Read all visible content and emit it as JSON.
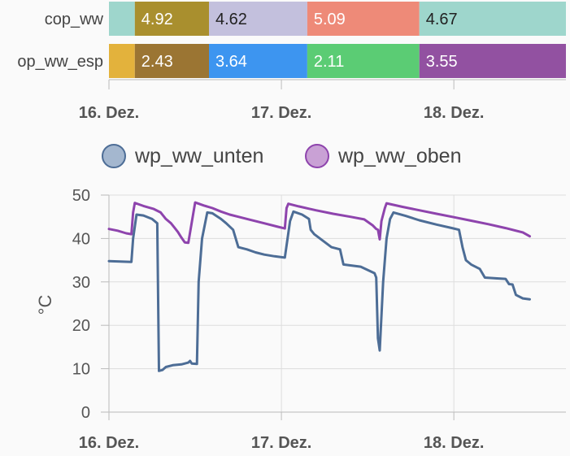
{
  "chart_data": [
    {
      "type": "bar",
      "orientation": "horizontal-timeline",
      "rows": [
        {
          "label": "cop_ww",
          "segments": [
            {
              "value": "",
              "color": "#9ed6cc",
              "text_color": "#ffffff"
            },
            {
              "value": "4.92",
              "color": "#a98f2e",
              "text_color": "#ffffff"
            },
            {
              "value": "4.62",
              "color": "#c3c0dd",
              "text_color": "#222222"
            },
            {
              "value": "5.09",
              "color": "#ee8a78",
              "text_color": "#ffffff"
            },
            {
              "value": "4.67",
              "color": "#9ed6cc",
              "text_color": "#222222"
            }
          ]
        },
        {
          "label": "cop_ww_esp",
          "label_display": "op_ww_esp",
          "segments": [
            {
              "value": "",
              "color": "#e3b23c",
              "text_color": "#ffffff"
            },
            {
              "value": "2.43",
              "color": "#9b7533",
              "text_color": "#ffffff"
            },
            {
              "value": "3.64",
              "color": "#3d95f0",
              "text_color": "#ffffff"
            },
            {
              "value": "2.11",
              "color": "#5bcc74",
              "text_color": "#ffffff"
            },
            {
              "value": "3.55",
              "color": "#9251a1",
              "text_color": "#ffffff"
            }
          ]
        }
      ],
      "segment_bounds_days": [
        0.0,
        0.15,
        0.58,
        1.15,
        1.8,
        2.65
      ],
      "x_ticks": [
        "16. Dez.",
        "17. Dez.",
        "18. Dez."
      ],
      "x_range_days": [
        0,
        2.65
      ]
    },
    {
      "type": "line",
      "ylabel": "°C",
      "ylim": [
        0,
        50
      ],
      "y_ticks": [
        0,
        10,
        20,
        30,
        40,
        50
      ],
      "x_ticks": [
        "16. Dez.",
        "17. Dez.",
        "18. Dez."
      ],
      "x_range_days": [
        0,
        2.65
      ],
      "grid": true,
      "legend_position": "top",
      "series": [
        {
          "name": "wp_ww_unten",
          "color": "#4d6d96",
          "fill": "#a4b7cf",
          "points": [
            [
              0.0,
              34.8
            ],
            [
              0.13,
              34.6
            ],
            [
              0.14,
              40.0
            ],
            [
              0.16,
              45.5
            ],
            [
              0.2,
              45.3
            ],
            [
              0.25,
              44.5
            ],
            [
              0.28,
              43.5
            ],
            [
              0.29,
              9.5
            ],
            [
              0.31,
              9.7
            ],
            [
              0.33,
              10.4
            ],
            [
              0.37,
              10.8
            ],
            [
              0.42,
              11.0
            ],
            [
              0.46,
              11.4
            ],
            [
              0.47,
              11.8
            ],
            [
              0.48,
              11.2
            ],
            [
              0.51,
              11.1
            ],
            [
              0.52,
              30.0
            ],
            [
              0.54,
              40.0
            ],
            [
              0.57,
              46.0
            ],
            [
              0.6,
              45.8
            ],
            [
              0.65,
              44.5
            ],
            [
              0.68,
              43.5
            ],
            [
              0.72,
              42.0
            ],
            [
              0.75,
              38.0
            ],
            [
              0.8,
              37.5
            ],
            [
              0.85,
              36.8
            ],
            [
              0.9,
              36.3
            ],
            [
              0.96,
              35.9
            ],
            [
              1.0,
              35.7
            ],
            [
              1.02,
              35.6
            ],
            [
              1.05,
              44.0
            ],
            [
              1.07,
              46.2
            ],
            [
              1.12,
              45.5
            ],
            [
              1.16,
              44.5
            ],
            [
              1.17,
              42.0
            ],
            [
              1.19,
              41.0
            ],
            [
              1.24,
              39.5
            ],
            [
              1.29,
              38.0
            ],
            [
              1.34,
              37.5
            ],
            [
              1.36,
              34.0
            ],
            [
              1.4,
              33.8
            ],
            [
              1.46,
              33.5
            ],
            [
              1.54,
              32.0
            ],
            [
              1.55,
              31.0
            ],
            [
              1.56,
              17.0
            ],
            [
              1.57,
              14.2
            ],
            [
              1.59,
              30.0
            ],
            [
              1.61,
              40.0
            ],
            [
              1.63,
              44.5
            ],
            [
              1.65,
              46.0
            ],
            [
              1.72,
              45.2
            ],
            [
              1.8,
              44.2
            ],
            [
              1.9,
              43.2
            ],
            [
              1.99,
              42.4
            ],
            [
              2.03,
              42.0
            ],
            [
              2.05,
              38.0
            ],
            [
              2.07,
              35.0
            ],
            [
              2.1,
              34.0
            ],
            [
              2.15,
              33.0
            ],
            [
              2.18,
              31.0
            ],
            [
              2.25,
              30.8
            ],
            [
              2.3,
              30.7
            ],
            [
              2.32,
              29.5
            ],
            [
              2.34,
              29.4
            ],
            [
              2.36,
              27.0
            ],
            [
              2.4,
              26.2
            ],
            [
              2.44,
              26.0
            ]
          ]
        },
        {
          "name": "wp_ww_oben",
          "color": "#8e44ad",
          "fill": "#c9a1d5",
          "points": [
            [
              0.0,
              42.2
            ],
            [
              0.05,
              41.8
            ],
            [
              0.1,
              41.2
            ],
            [
              0.13,
              41.0
            ],
            [
              0.14,
              46.0
            ],
            [
              0.15,
              48.2
            ],
            [
              0.2,
              47.5
            ],
            [
              0.26,
              46.8
            ],
            [
              0.3,
              46.0
            ],
            [
              0.33,
              44.5
            ],
            [
              0.36,
              43.5
            ],
            [
              0.38,
              42.5
            ],
            [
              0.4,
              41.5
            ],
            [
              0.42,
              40.2
            ],
            [
              0.44,
              39.1
            ],
            [
              0.46,
              39.0
            ],
            [
              0.49,
              46.0
            ],
            [
              0.5,
              48.3
            ],
            [
              0.55,
              47.6
            ],
            [
              0.6,
              47.0
            ],
            [
              0.65,
              46.2
            ],
            [
              0.7,
              45.5
            ],
            [
              0.75,
              45.0
            ],
            [
              0.82,
              44.3
            ],
            [
              0.9,
              43.5
            ],
            [
              0.98,
              42.7
            ],
            [
              1.02,
              42.3
            ],
            [
              1.03,
              47.0
            ],
            [
              1.04,
              48.0
            ],
            [
              1.1,
              47.4
            ],
            [
              1.2,
              46.5
            ],
            [
              1.3,
              45.7
            ],
            [
              1.4,
              45.0
            ],
            [
              1.48,
              44.4
            ],
            [
              1.53,
              43.0
            ],
            [
              1.55,
              42.2
            ],
            [
              1.56,
              42.0
            ],
            [
              1.57,
              39.8
            ],
            [
              1.58,
              44.0
            ],
            [
              1.6,
              47.0
            ],
            [
              1.61,
              48.1
            ],
            [
              1.7,
              47.3
            ],
            [
              1.8,
              46.5
            ],
            [
              1.9,
              45.7
            ],
            [
              2.0,
              44.9
            ],
            [
              2.1,
              44.1
            ],
            [
              2.2,
              43.3
            ],
            [
              2.3,
              42.4
            ],
            [
              2.4,
              41.4
            ],
            [
              2.44,
              40.5
            ]
          ]
        }
      ]
    }
  ]
}
